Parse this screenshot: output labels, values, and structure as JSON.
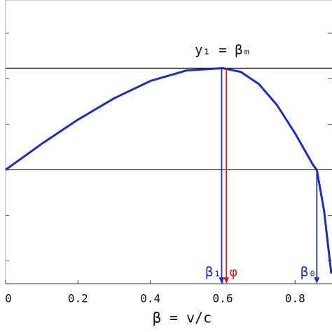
{
  "chart_data": {
    "type": "line",
    "x_label": "β = v/c",
    "annotation": "y₁ = βₘ",
    "xlim": [
      0,
      0.9
    ],
    "ylim": [
      -2.5,
      3.45
    ],
    "xticks": [
      {
        "value": 0,
        "label": "0"
      },
      0.2,
      0.4,
      0.6,
      0.8
    ],
    "yticks": [
      -2,
      -1,
      0,
      1,
      2,
      3
    ],
    "grid": false,
    "hlines": [
      0,
      2.23
    ],
    "series": [
      {
        "color": "#1f2fb4",
        "x": [
          0,
          0.1,
          0.2,
          0.3,
          0.4,
          0.5,
          0.6,
          0.65,
          0.7,
          0.75,
          0.8,
          0.85,
          0.86,
          0.88,
          0.9
        ],
        "values": [
          0,
          0.57,
          1.1,
          1.57,
          1.95,
          2.18,
          2.23,
          2.15,
          1.88,
          1.42,
          0.8,
          0.1,
          0,
          -0.9,
          -2.28
        ]
      }
    ],
    "markers": [
      {
        "label": "β₁",
        "x": 0.597,
        "y": 2.23,
        "color": "#1f2fb4"
      },
      {
        "label": "φ",
        "x": 0.61,
        "y": 2.23,
        "color": "#d02020"
      },
      {
        "label": "β₀",
        "x": 0.86,
        "y": 0,
        "color": "#1f2fb4"
      }
    ]
  }
}
